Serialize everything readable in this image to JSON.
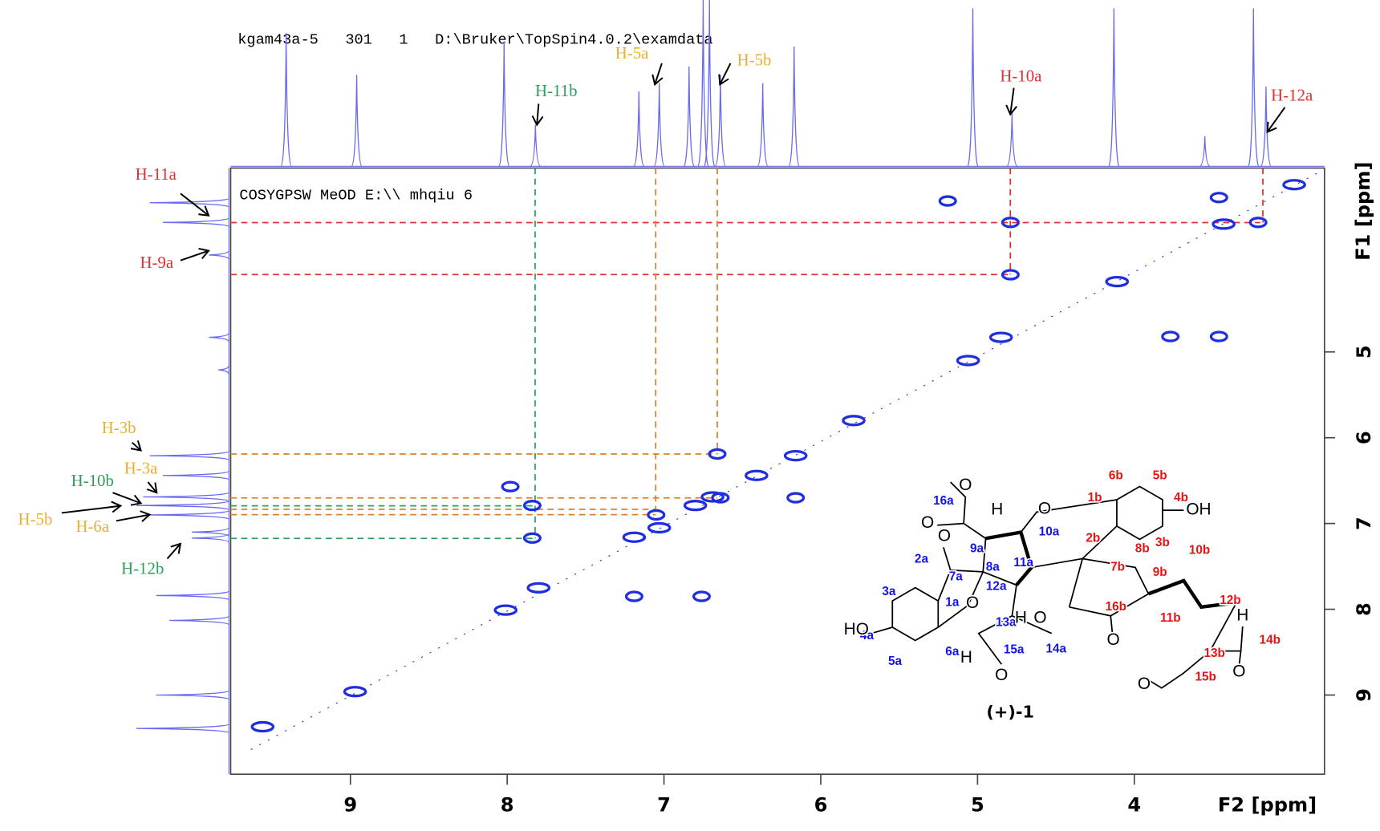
{
  "chart_data": {
    "type": "scatter",
    "header_text": "kgam43a-5   301   1   D:\\Bruker\\TopSpin4.0.2\\examdata",
    "inner_text": "COSYGPSW MeOD E:\\\\ mhqiu 6",
    "x_label": "F2 [ppm]",
    "y_label": "F1 [ppm]",
    "xlim": [
      9.764,
      2.787
    ],
    "ylim": [
      2.856,
      9.923
    ],
    "xticks": [
      9,
      8,
      7,
      6,
      5,
      4
    ],
    "yticks": [
      5,
      6,
      7,
      8,
      9
    ],
    "color": "#1f2fe0",
    "x": [
      9.56,
      8.97,
      8.01,
      7.8,
      7.19,
      7.03,
      6.8,
      6.69,
      6.41,
      6.16,
      5.79,
      5.06,
      4.85,
      4.11,
      3.43,
      2.98,
      4.79,
      4.79,
      3.21,
      3.46,
      3.77,
      3.46,
      5.19,
      6.66,
      7.84,
      7.84,
      7.05,
      6.64,
      7.19,
      6.76,
      7.98,
      6.16
    ],
    "y": [
      9.37,
      8.96,
      8.01,
      7.75,
      7.16,
      7.05,
      6.79,
      6.69,
      6.44,
      6.21,
      5.8,
      5.1,
      4.83,
      4.18,
      3.51,
      3.05,
      3.49,
      4.1,
      3.49,
      3.2,
      4.82,
      4.82,
      3.24,
      6.19,
      6.79,
      7.17,
      6.9,
      6.7,
      7.85,
      7.85,
      6.57,
      6.7
    ],
    "projection_color": "#6a6af0",
    "f2_projection": {
      "x": [
        9.41,
        8.96,
        8.02,
        7.82,
        7.16,
        7.03,
        6.84,
        6.75,
        6.71,
        6.64,
        6.37,
        6.17,
        5.03,
        4.78,
        4.13,
        3.55,
        3.24,
        3.16
      ],
      "values": [
        80,
        55,
        75,
        25,
        45,
        50,
        60,
        100,
        100,
        55,
        50,
        72,
        95,
        32,
        95,
        18,
        95,
        48
      ]
    },
    "f1_projection": {
      "y": [
        3.26,
        3.49,
        3.87,
        4.83,
        5.21,
        6.21,
        6.44,
        6.69,
        6.79,
        6.9,
        7.1,
        7.17,
        7.84,
        8.13,
        9.0,
        9.39
      ],
      "values": [
        60,
        50,
        15,
        15,
        8,
        60,
        50,
        65,
        70,
        60,
        28,
        28,
        55,
        45,
        55,
        70
      ]
    },
    "annotations": [
      {
        "text": "H-11b",
        "color": "#2ca05a"
      },
      {
        "text": "H-5a",
        "color": "#e8b030"
      },
      {
        "text": "H-5b",
        "color": "#e8b030"
      },
      {
        "text": "H-10a",
        "color": "#e03030"
      },
      {
        "text": "H-12a",
        "color": "#e03030"
      },
      {
        "text": "H-11a",
        "color": "#e03030"
      },
      {
        "text": "H-9a",
        "color": "#e03030"
      },
      {
        "text": "H-3b",
        "color": "#e8b030"
      },
      {
        "text": "H-3a",
        "color": "#e8b030"
      },
      {
        "text": "H-10b",
        "color": "#2ca05a"
      },
      {
        "text": "H-5b",
        "color": "#e8b030"
      },
      {
        "text": "H-6a",
        "color": "#e8b030"
      },
      {
        "text": "H-12b",
        "color": "#2ca05a"
      }
    ],
    "structure": {
      "label": "(+)-1",
      "atoms": [
        {
          "text": "16a",
          "color": "#1414e6"
        },
        {
          "text": "9a",
          "color": "#1414e6"
        },
        {
          "text": "8a",
          "color": "#1414e6"
        },
        {
          "text": "11a",
          "color": "#1414e6"
        },
        {
          "text": "10a",
          "color": "#1414e6"
        },
        {
          "text": "12a",
          "color": "#1414e6"
        },
        {
          "text": "7a",
          "color": "#1414e6"
        },
        {
          "text": "2a",
          "color": "#1414e6"
        },
        {
          "text": "3a",
          "color": "#1414e6"
        },
        {
          "text": "1a",
          "color": "#1414e6"
        },
        {
          "text": "4a",
          "color": "#1414e6"
        },
        {
          "text": "5a",
          "color": "#1414e6"
        },
        {
          "text": "6a",
          "color": "#1414e6"
        },
        {
          "text": "13a",
          "color": "#1414e6"
        },
        {
          "text": "15a",
          "color": "#1414e6"
        },
        {
          "text": "14a",
          "color": "#1414e6"
        },
        {
          "text": "6b",
          "color": "#e61414"
        },
        {
          "text": "5b",
          "color": "#e61414"
        },
        {
          "text": "1b",
          "color": "#e61414"
        },
        {
          "text": "4b",
          "color": "#e61414"
        },
        {
          "text": "2b",
          "color": "#e61414"
        },
        {
          "text": "3b",
          "color": "#e61414"
        },
        {
          "text": "8b",
          "color": "#e61414"
        },
        {
          "text": "7b",
          "color": "#e61414"
        },
        {
          "text": "9b",
          "color": "#e61414"
        },
        {
          "text": "10b",
          "color": "#e61414"
        },
        {
          "text": "16b",
          "color": "#e61414"
        },
        {
          "text": "12b",
          "color": "#e61414"
        },
        {
          "text": "11b",
          "color": "#e61414"
        },
        {
          "text": "13b",
          "color": "#e61414"
        },
        {
          "text": "14b",
          "color": "#e61414"
        },
        {
          "text": "15b",
          "color": "#e61414"
        },
        {
          "text": "O",
          "color": "#000000"
        },
        {
          "text": "O",
          "color": "#000000"
        },
        {
          "text": "H",
          "color": "#000000"
        },
        {
          "text": "O",
          "color": "#000000"
        },
        {
          "text": "OH",
          "color": "#000000"
        },
        {
          "text": "O",
          "color": "#000000"
        },
        {
          "text": "O",
          "color": "#000000"
        },
        {
          "text": "H",
          "color": "#000000"
        },
        {
          "text": "O",
          "color": "#000000"
        },
        {
          "text": "H",
          "color": "#000000"
        },
        {
          "text": "HO",
          "color": "#000000"
        },
        {
          "text": "O",
          "color": "#000000"
        },
        {
          "text": "O",
          "color": "#000000"
        },
        {
          "text": "H",
          "color": "#000000"
        },
        {
          "text": "O",
          "color": "#000000"
        },
        {
          "text": "O",
          "color": "#000000"
        }
      ]
    }
  }
}
